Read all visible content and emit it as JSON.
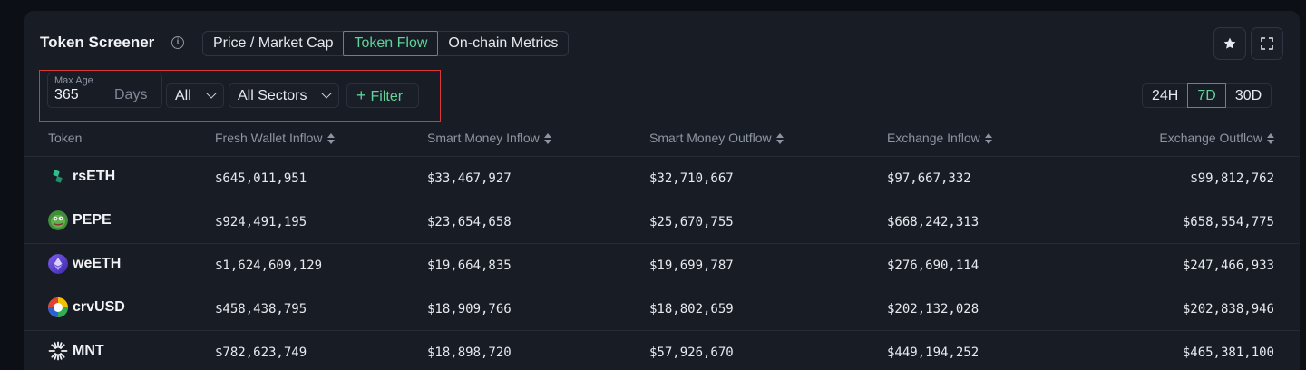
{
  "header": {
    "title": "Token Screener",
    "tabs": [
      "Price / Market Cap",
      "Token Flow",
      "On-chain Metrics"
    ],
    "active_tab": "Token Flow"
  },
  "filters": {
    "max_age_label": "Max Age",
    "max_age_value": "365",
    "max_age_unit": "Days",
    "chain_dropdown": "All",
    "sector_dropdown": "All Sectors",
    "filter_button": "Filter"
  },
  "time_range": {
    "options": [
      "24H",
      "7D",
      "30D"
    ],
    "active": "7D"
  },
  "table": {
    "columns": [
      "Token",
      "Fresh Wallet Inflow",
      "Smart Money Inflow",
      "Smart Money Outflow",
      "Exchange Inflow",
      "Exchange Outflow"
    ],
    "rows": [
      {
        "token": "rsETH",
        "icon": "rseth-icon",
        "fresh_wallet_inflow": "$645,011,951",
        "smart_money_inflow": "$33,467,927",
        "smart_money_outflow": "$32,710,667",
        "exchange_inflow": "$97,667,332",
        "exchange_outflow": "$99,812,762"
      },
      {
        "token": "PEPE",
        "icon": "pepe-icon",
        "fresh_wallet_inflow": "$924,491,195",
        "smart_money_inflow": "$23,654,658",
        "smart_money_outflow": "$25,670,755",
        "exchange_inflow": "$668,242,313",
        "exchange_outflow": "$658,554,775"
      },
      {
        "token": "weETH",
        "icon": "weeth-icon",
        "fresh_wallet_inflow": "$1,624,609,129",
        "smart_money_inflow": "$19,664,835",
        "smart_money_outflow": "$19,699,787",
        "exchange_inflow": "$276,690,114",
        "exchange_outflow": "$247,466,933"
      },
      {
        "token": "crvUSD",
        "icon": "crvusd-icon",
        "fresh_wallet_inflow": "$458,438,795",
        "smart_money_inflow": "$18,909,766",
        "smart_money_outflow": "$18,802,659",
        "exchange_inflow": "$202,132,028",
        "exchange_outflow": "$202,838,946"
      },
      {
        "token": "MNT",
        "icon": "mnt-icon",
        "fresh_wallet_inflow": "$782,623,749",
        "smart_money_inflow": "$18,898,720",
        "smart_money_outflow": "$57,926,670",
        "exchange_inflow": "$449,194,252",
        "exchange_outflow": "$465,381,100"
      }
    ]
  },
  "colors": {
    "accent_green": "#5fd39a",
    "panel_bg": "#181c24",
    "highlight_red": "#d9373a"
  }
}
